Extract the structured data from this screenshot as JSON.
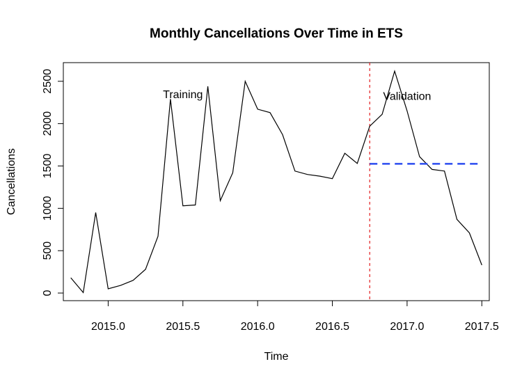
{
  "chart_data": {
    "type": "line",
    "title": "Monthly Cancellations Over Time in ETS",
    "xlabel": "Time",
    "ylabel": "Cancellations",
    "xlim": [
      2014.7,
      2017.55
    ],
    "ylim": [
      -90,
      2720
    ],
    "xticks": [
      2015.0,
      2015.5,
      2016.0,
      2016.5,
      2017.0,
      2017.5
    ],
    "xtick_labels": [
      "2015.0",
      "2015.5",
      "2016.0",
      "2016.5",
      "2017.0",
      "2017.5"
    ],
    "yticks": [
      0,
      500,
      1000,
      1500,
      2000,
      2500
    ],
    "ytick_labels": [
      "0",
      "500",
      "1000",
      "1500",
      "2000",
      "2500"
    ],
    "grid": false,
    "series": [
      {
        "color": "#000000",
        "style": "solid",
        "x": [
          2014.75,
          2014.8333,
          2014.9167,
          2015.0,
          2015.0833,
          2015.1667,
          2015.25,
          2015.3333,
          2015.4167,
          2015.5,
          2015.5833,
          2015.6667,
          2015.75,
          2015.8333,
          2015.9167,
          2016.0,
          2016.0833,
          2016.1667,
          2016.25,
          2016.3333,
          2016.4167,
          2016.5,
          2016.5833,
          2016.6667,
          2016.75,
          2016.8333,
          2016.9167,
          2017.0,
          2017.0833,
          2017.1667,
          2017.25,
          2017.3333,
          2017.4167,
          2017.5
        ],
        "values": [
          180,
          5,
          950,
          50,
          90,
          150,
          280,
          670,
          2290,
          1030,
          1040,
          2440,
          1090,
          1420,
          2500,
          2170,
          2130,
          1870,
          1440,
          1400,
          1380,
          1350,
          1650,
          1530,
          1970,
          2110,
          2620,
          2150,
          1610,
          1460,
          1440,
          870,
          710,
          330
        ]
      },
      {
        "color": "#2b4cf0",
        "style": "dashed",
        "x": [
          2016.75,
          2017.5
        ],
        "values": [
          1525,
          1525
        ]
      }
    ],
    "reference_lines": [
      {
        "axis": "x",
        "value": 2016.75,
        "color": "#e31a1c",
        "style": "dashed"
      }
    ],
    "annotations": [
      {
        "text": "Training",
        "x": 2015.5,
        "y": 2350
      },
      {
        "text": "Validation",
        "x": 2017.0,
        "y": 2330
      }
    ]
  }
}
